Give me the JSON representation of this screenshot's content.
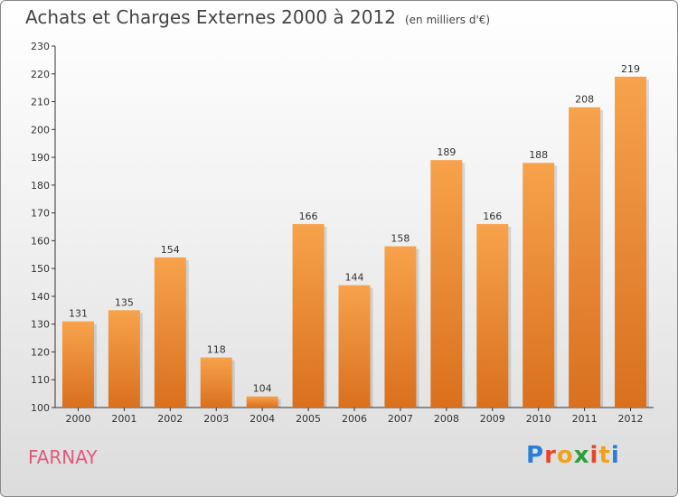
{
  "title": "Achats et Charges Externes 2000 à 2012",
  "unit": "(en milliers d'€)",
  "city": "FARNAY",
  "logo": {
    "letters": [
      "P",
      "r",
      "o",
      "x",
      "i",
      "t",
      "i"
    ],
    "colors": [
      "#2a7fd4",
      "#e8462a",
      "#f2a21a",
      "#2e9e3e",
      "#e8462a",
      "#f2a21a",
      "#2a7fd4"
    ]
  },
  "chart_data": {
    "type": "bar",
    "categories": [
      "2000",
      "2001",
      "2002",
      "2003",
      "2004",
      "2005",
      "2006",
      "2007",
      "2008",
      "2009",
      "2010",
      "2011",
      "2012"
    ],
    "values": [
      131,
      135,
      154,
      118,
      104,
      166,
      144,
      158,
      189,
      166,
      188,
      208,
      219
    ],
    "ylim": [
      100,
      230
    ],
    "yticks": [
      100,
      110,
      120,
      130,
      140,
      150,
      160,
      170,
      180,
      190,
      200,
      210,
      220,
      230
    ],
    "grid": false,
    "bar_color": "#f0923a",
    "title": "Achats et Charges Externes 2000 à 2012",
    "xlabel": "",
    "ylabel": ""
  }
}
